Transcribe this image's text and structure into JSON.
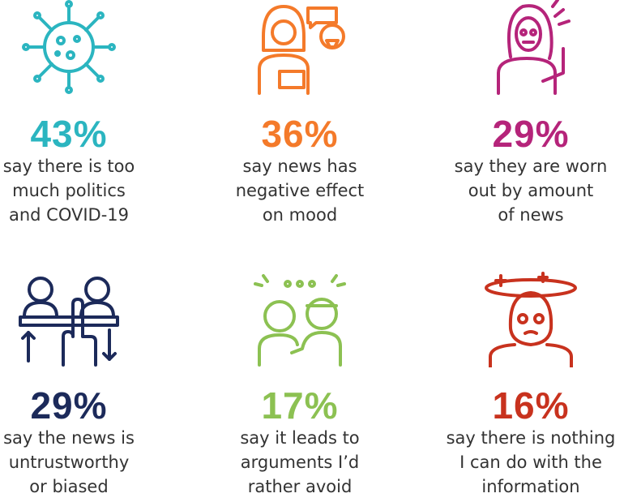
{
  "items": [
    {
      "percent": "43%",
      "lines": [
        "say there is too",
        "much politics",
        "and COVID-19"
      ]
    },
    {
      "percent": "36%",
      "lines": [
        "say news has",
        "negative effect",
        "on mood"
      ]
    },
    {
      "percent": "29%",
      "lines": [
        "say they are worn",
        "out by amount",
        "of news"
      ]
    },
    {
      "percent": "29%",
      "lines": [
        "say the news is",
        "untrustworthy",
        "or biased"
      ]
    },
    {
      "percent": "17%",
      "lines": [
        "say it leads to",
        "arguments I’d",
        "rather avoid"
      ]
    },
    {
      "percent": "16%",
      "lines": [
        "say there is nothing",
        "I can do with the",
        "information"
      ]
    }
  ]
}
